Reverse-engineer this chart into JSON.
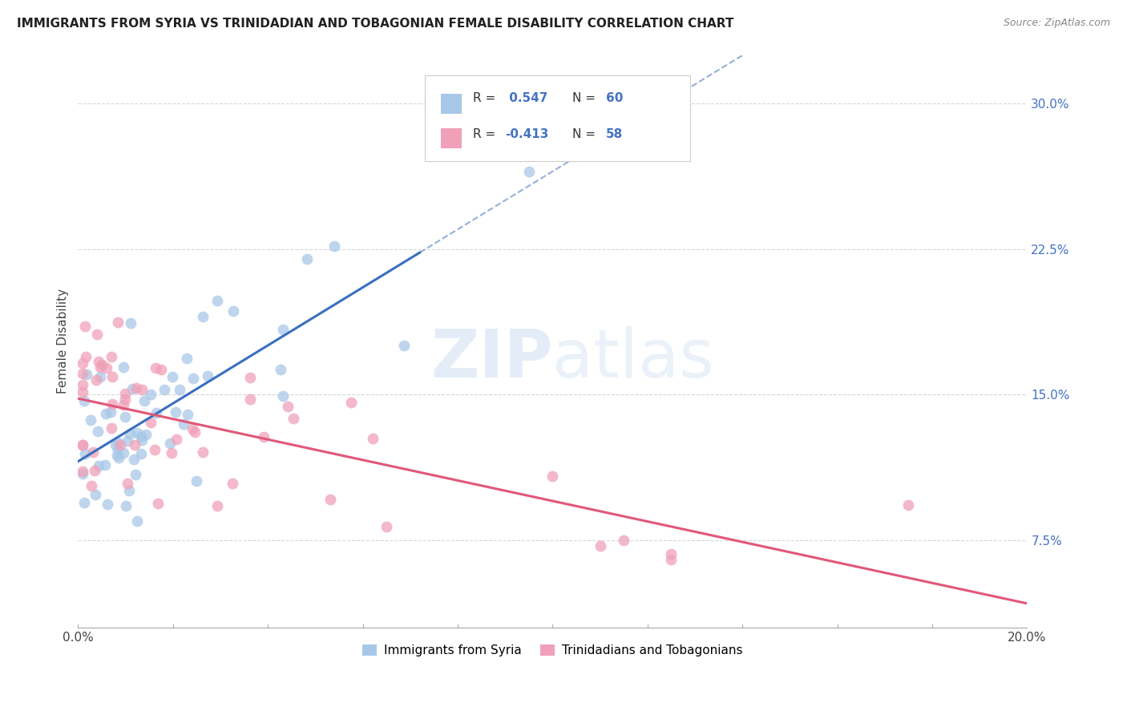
{
  "title": "IMMIGRANTS FROM SYRIA VS TRINIDADIAN AND TOBAGONIAN FEMALE DISABILITY CORRELATION CHART",
  "source": "Source: ZipAtlas.com",
  "ylabel": "Female Disability",
  "y_ticks": [
    0.075,
    0.15,
    0.225,
    0.3
  ],
  "y_tick_labels": [
    "7.5%",
    "15.0%",
    "22.5%",
    "30.0%"
  ],
  "x_range": [
    0.0,
    0.2
  ],
  "y_range": [
    0.03,
    0.325
  ],
  "color_blue": "#A8C8E8",
  "color_pink": "#F0A0B8",
  "color_blue_line": "#3A6FBF",
  "color_pink_line": "#E05878",
  "color_r_val": "#4472C4",
  "color_n_val": "#4472C4",
  "watermark_zip_color": "#C5D8EE",
  "watermark_atlas_color": "#C5D8EE",
  "grid_color": "#CCCCCC",
  "legend_r1_label": "R = ",
  "legend_r1_val": " 0.547",
  "legend_n1_label": "N = ",
  "legend_n1_val": "60",
  "legend_r2_label": "R = ",
  "legend_r2_val": "-0.413",
  "legend_n2_label": "N = ",
  "legend_n2_val": "58"
}
